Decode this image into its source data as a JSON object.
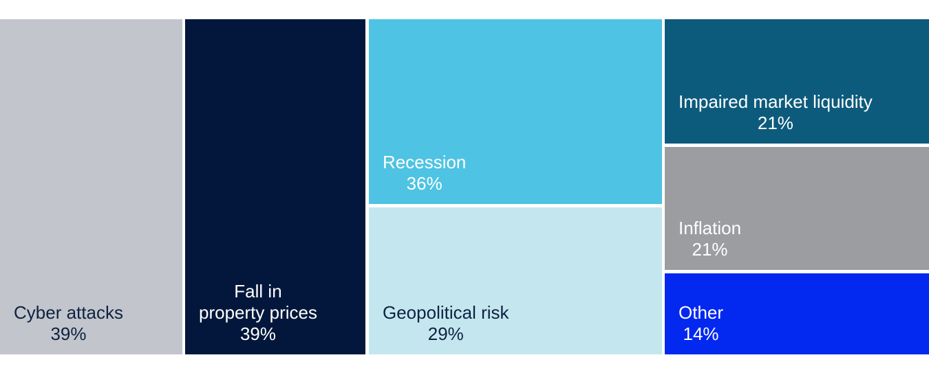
{
  "chart_data": {
    "type": "treemap",
    "unit": "%",
    "background_color": "#FFFFFF",
    "items": [
      {
        "label": "Cyber attacks",
        "label_lines": [
          "Cyber attacks"
        ],
        "value": 39,
        "value_label": "39%",
        "color": "#C2C5CC",
        "text_color": "#0E2240"
      },
      {
        "label": "Fall in property prices",
        "label_lines": [
          "Fall in",
          "property prices"
        ],
        "value": 39,
        "value_label": "39%",
        "color": "#02173B",
        "text_color": "#FFFFFF"
      },
      {
        "label": "Recession",
        "label_lines": [
          "Recession"
        ],
        "value": 36,
        "value_label": "36%",
        "color": "#4EC3E3",
        "text_color": "#FFFFFF"
      },
      {
        "label": "Geopolitical risk",
        "label_lines": [
          "Geopolitical risk"
        ],
        "value": 29,
        "value_label": "29%",
        "color": "#C4E7EF",
        "text_color": "#0E2240"
      },
      {
        "label": "Impaired market liquidity",
        "label_lines": [
          "Impaired market liquidity"
        ],
        "value": 21,
        "value_label": "21%",
        "color": "#0D5B7C",
        "text_color": "#FFFFFF"
      },
      {
        "label": "Inflation",
        "label_lines": [
          "Inflation"
        ],
        "value": 21,
        "value_label": "21%",
        "color": "#9B9DA0",
        "text_color": "#FFFFFF"
      },
      {
        "label": "Other",
        "label_lines": [
          "Other"
        ],
        "value": 14,
        "value_label": "14%",
        "color": "#0328F0",
        "text_color": "#FFFFFF"
      }
    ]
  }
}
